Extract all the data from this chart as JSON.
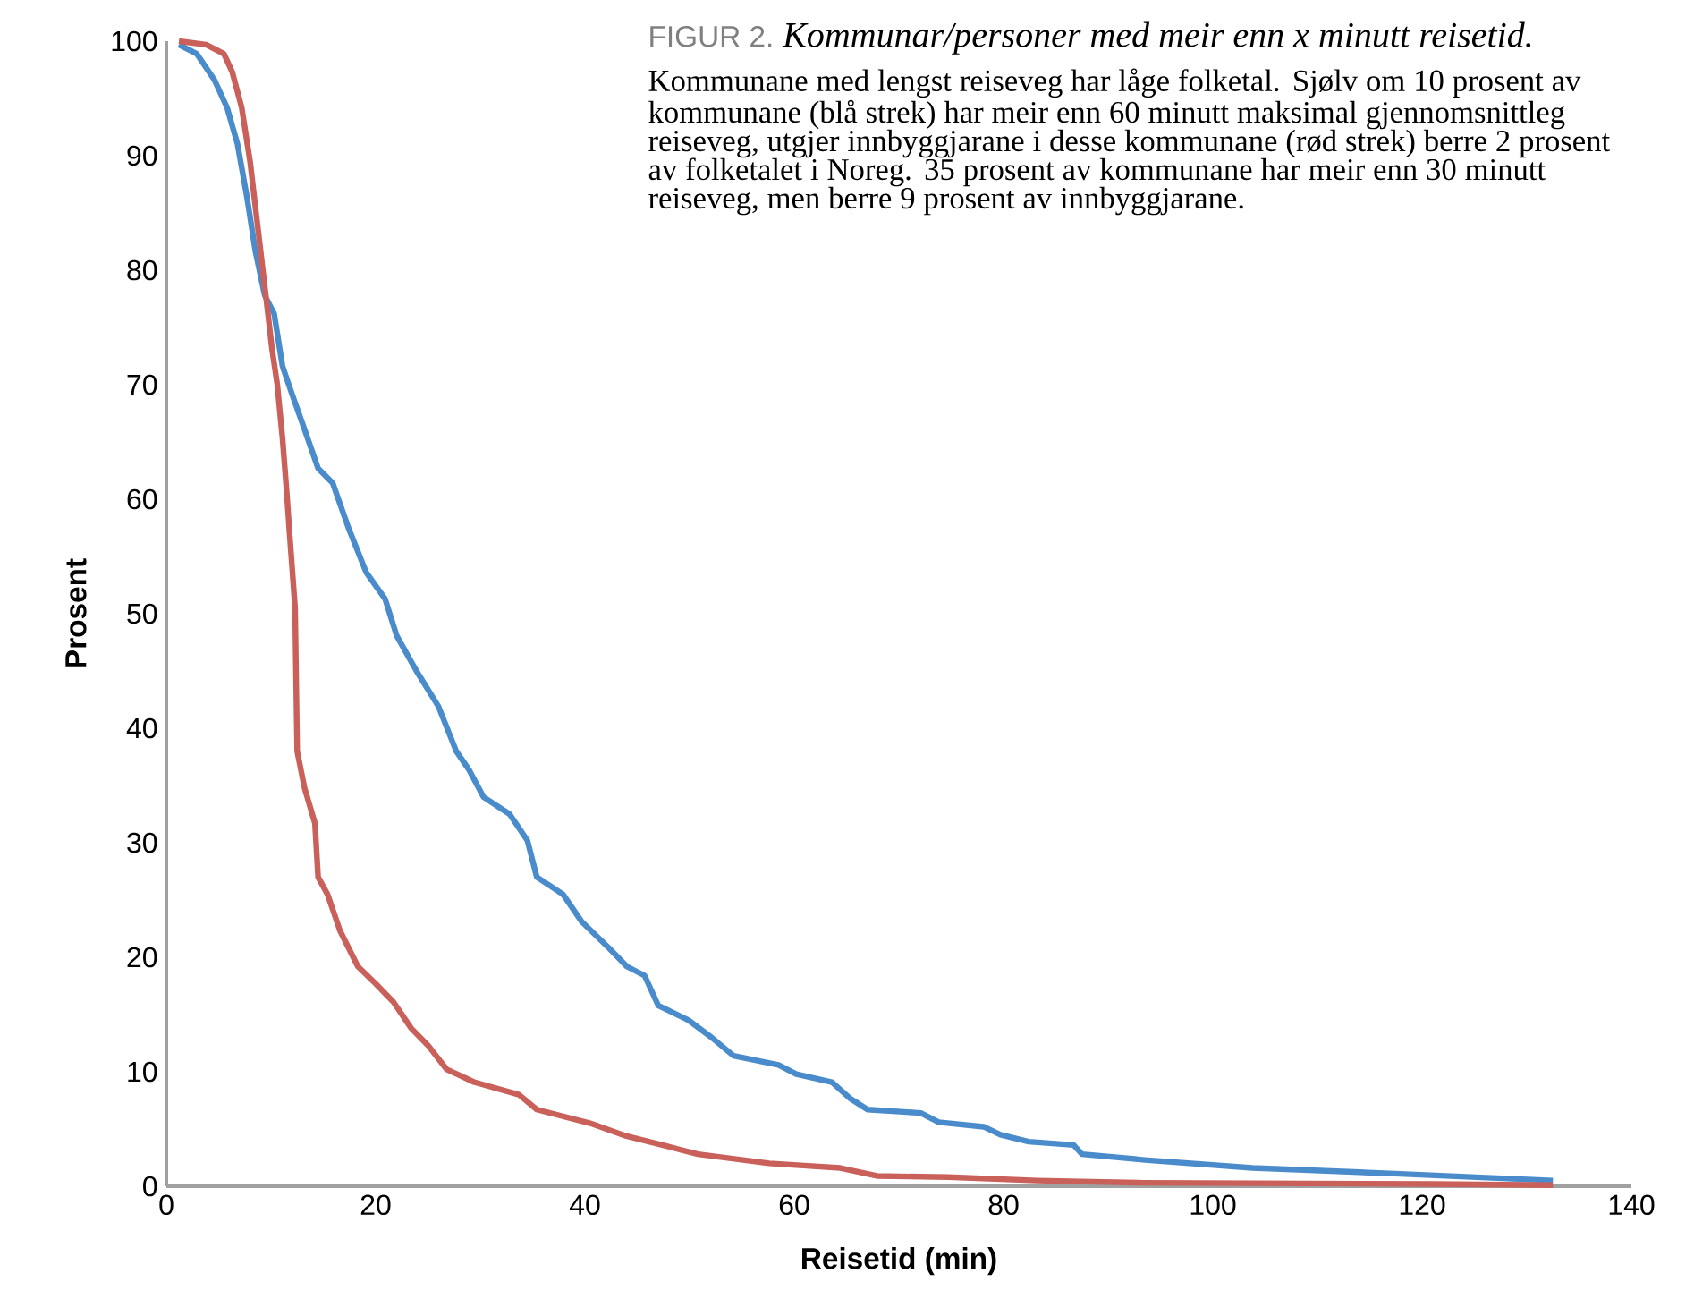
{
  "chart_data": {
    "type": "line",
    "title": "FIGUR 2.",
    "subtitle": "Kommunar/personer med meir enn x minutt reisetid.",
    "annotations": [
      "Kommunane med lengst reiseveg har låge folketal. Sjølv om 10 prosent av kommunane (blå strek) har meir enn 60 minutt maksimal gjennomsnittleg reiseveg, utgjer innbyggjarane i desse kommunane (rød strek) berre 2 prosent av folketalet i Noreg. 35 prosent av kommunane har meir enn 30 minutt reiseveg, men berre 9 prosent av innbyggjarane."
    ],
    "xlabel": "Reisetid (min)",
    "ylabel": "Prosent",
    "xlim": [
      0,
      140
    ],
    "ylim": [
      0,
      100
    ],
    "xticks": [
      0,
      20,
      40,
      60,
      80,
      100,
      120,
      140
    ],
    "yticks": [
      0,
      10,
      20,
      30,
      40,
      50,
      60,
      70,
      80,
      90,
      100
    ],
    "series": [
      {
        "color": "#4a8ccb",
        "x": [
          1.2,
          2.9,
          4.6,
          5.8,
          6.8,
          7.7,
          8.5,
          9.4,
          10.3,
          11.1,
          12.0,
          13.2,
          14.5,
          15.9,
          17.4,
          19.1,
          20.9,
          22.0,
          23.9,
          26.0,
          27.7,
          28.9,
          30.3,
          32.8,
          34.5,
          35.4,
          37.9,
          39.7,
          42.3,
          44.0,
          45.7,
          47.0,
          49.9,
          52.1,
          54.2,
          58.5,
          60.2,
          63.6,
          65.3,
          67.0,
          72.1,
          73.8,
          78.1,
          79.7,
          82.4,
          86.7,
          87.5,
          93.5,
          103.8,
          117.4,
          132.5
        ],
        "values": [
          99.7,
          98.9,
          96.6,
          94.2,
          91.0,
          86.4,
          81.7,
          77.8,
          76.2,
          71.6,
          69.2,
          66.1,
          62.7,
          61.4,
          57.5,
          53.6,
          51.3,
          48.1,
          45.0,
          41.9,
          38.0,
          36.4,
          34.0,
          32.5,
          30.2,
          27.0,
          25.5,
          23.1,
          20.8,
          19.2,
          18.4,
          15.8,
          14.5,
          13.0,
          11.4,
          10.6,
          9.8,
          9.1,
          7.7,
          6.7,
          6.4,
          5.6,
          5.2,
          4.5,
          3.9,
          3.6,
          2.8,
          2.3,
          1.6,
          1.1,
          0.5
        ]
      },
      {
        "color": "#c9605a",
        "x": [
          1.2,
          3.8,
          5.5,
          6.3,
          7.2,
          8.0,
          8.5,
          9.4,
          10.1,
          10.6,
          11.1,
          11.5,
          11.8,
          12.3,
          12.5,
          13.2,
          14.2,
          14.5,
          15.4,
          16.6,
          18.3,
          20.0,
          21.7,
          23.4,
          25.1,
          26.8,
          29.4,
          33.7,
          35.4,
          40.5,
          43.9,
          47.4,
          50.8,
          57.6,
          64.4,
          67.9,
          74.7,
          83.2,
          93.5,
          120.9,
          132.5
        ],
        "values": [
          100.0,
          99.7,
          98.9,
          97.3,
          94.2,
          89.5,
          85.6,
          78.6,
          73.1,
          70.0,
          65.3,
          60.6,
          56.7,
          50.5,
          38.0,
          34.8,
          31.7,
          27.0,
          25.5,
          22.3,
          19.2,
          17.7,
          16.1,
          13.8,
          12.2,
          10.2,
          9.1,
          8.0,
          6.7,
          5.5,
          4.4,
          3.6,
          2.8,
          2.0,
          1.6,
          0.9,
          0.8,
          0.5,
          0.3,
          0.2,
          0.1
        ]
      }
    ]
  }
}
